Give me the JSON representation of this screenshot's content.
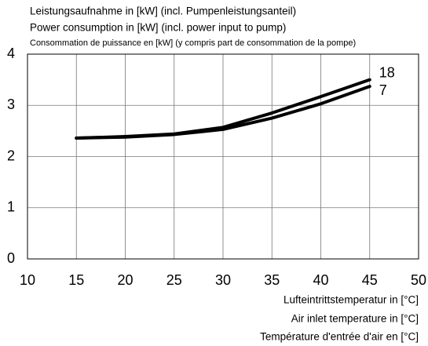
{
  "chart_data": {
    "type": "line",
    "title": [
      "Leistungsaufnahme in [kW] (incl. Pumpenleistungsanteil)",
      "Power consumption in [kW] (incl. power input to pump)",
      "Consommation de puissance en [kW] (y compris part de consommation de la pompe)"
    ],
    "x_label": [
      "Lufteintrittstemperatur in [°C]",
      "Air inlet temperature in [°C]",
      "Température d'entrée d'air en [°C]"
    ],
    "x": [
      15,
      20,
      25,
      30,
      35,
      40,
      45
    ],
    "series": [
      {
        "name": "18",
        "color": "#000000",
        "values": [
          2.36,
          2.39,
          2.44,
          2.57,
          2.85,
          3.17,
          3.5
        ]
      },
      {
        "name": "7",
        "color": "#000000",
        "values": [
          2.36,
          2.38,
          2.43,
          2.53,
          2.75,
          3.03,
          3.37
        ]
      }
    ],
    "xlim": [
      10,
      50
    ],
    "xticks": [
      10,
      15,
      20,
      25,
      30,
      35,
      40,
      45,
      50
    ],
    "ylim": [
      0,
      4
    ],
    "yticks": [
      0,
      1,
      2,
      3,
      4
    ],
    "grid": true
  }
}
